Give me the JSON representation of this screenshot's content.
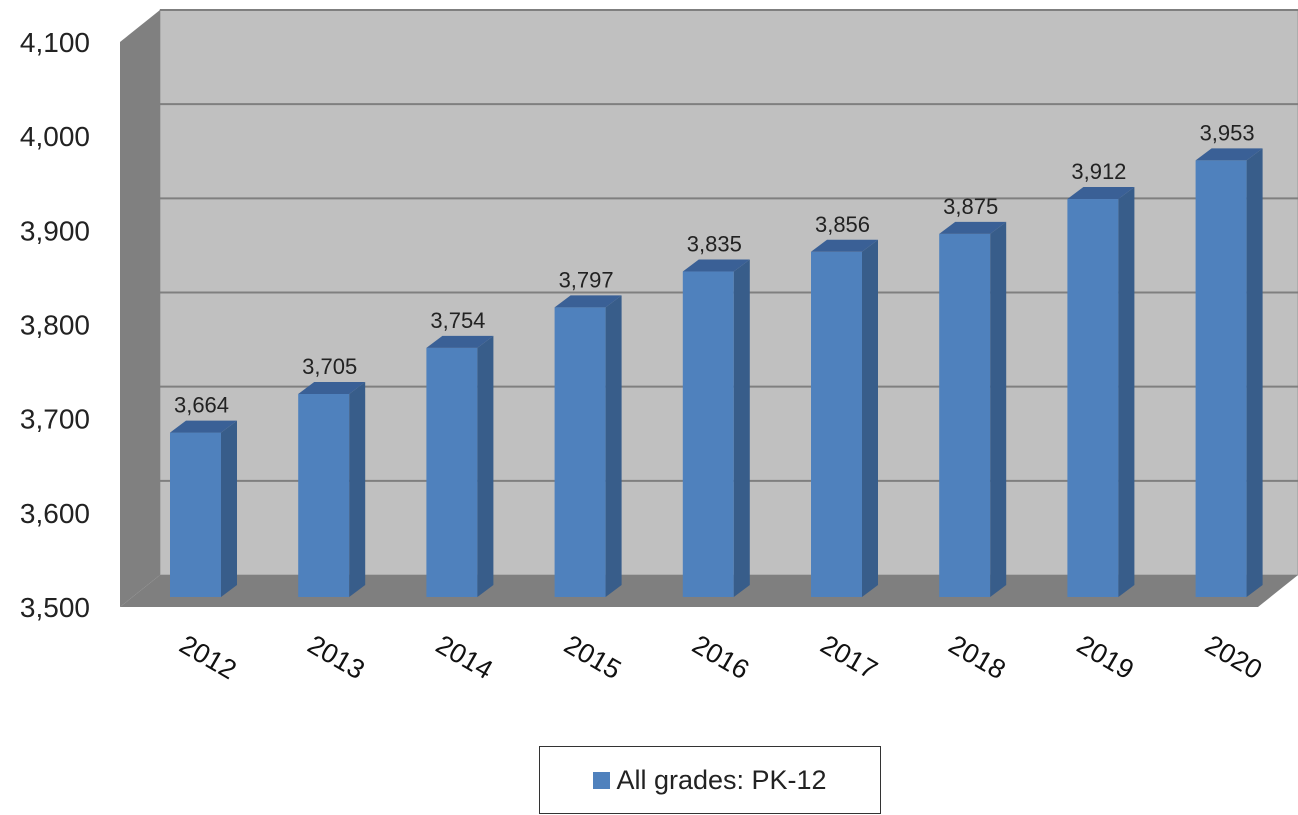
{
  "chart_data": {
    "type": "bar",
    "categories": [
      "2012",
      "2013",
      "2014",
      "2015",
      "2016",
      "2017",
      "2018",
      "2019",
      "2020"
    ],
    "series": [
      {
        "name": "All grades: PK-12",
        "values": [
          3664,
          3705,
          3754,
          3797,
          3835,
          3856,
          3875,
          3912,
          3953
        ],
        "labels": [
          "3,664",
          "3,705",
          "3,754",
          "3,797",
          "3,835",
          "3,856",
          "3,875",
          "3,912",
          "3,953"
        ]
      }
    ],
    "yticks": [
      3500,
      3600,
      3700,
      3800,
      3900,
      4000,
      4100
    ],
    "ytick_labels": [
      "3,500",
      "3,600",
      "3,700",
      "3,800",
      "3,900",
      "4,000",
      "4,100"
    ],
    "ylim": [
      3500,
      4100
    ],
    "grid": true,
    "legend_position": "bottom-center",
    "three_d": true,
    "colors": {
      "bar_front": "#4F81BD",
      "bar_side": "#385D8A",
      "bar_top": "#3A6096",
      "back_wall": "#C0C0C0",
      "side_wall": "#808080",
      "floor": "#7F7F7F",
      "gridline": "#7F7F7F"
    }
  }
}
